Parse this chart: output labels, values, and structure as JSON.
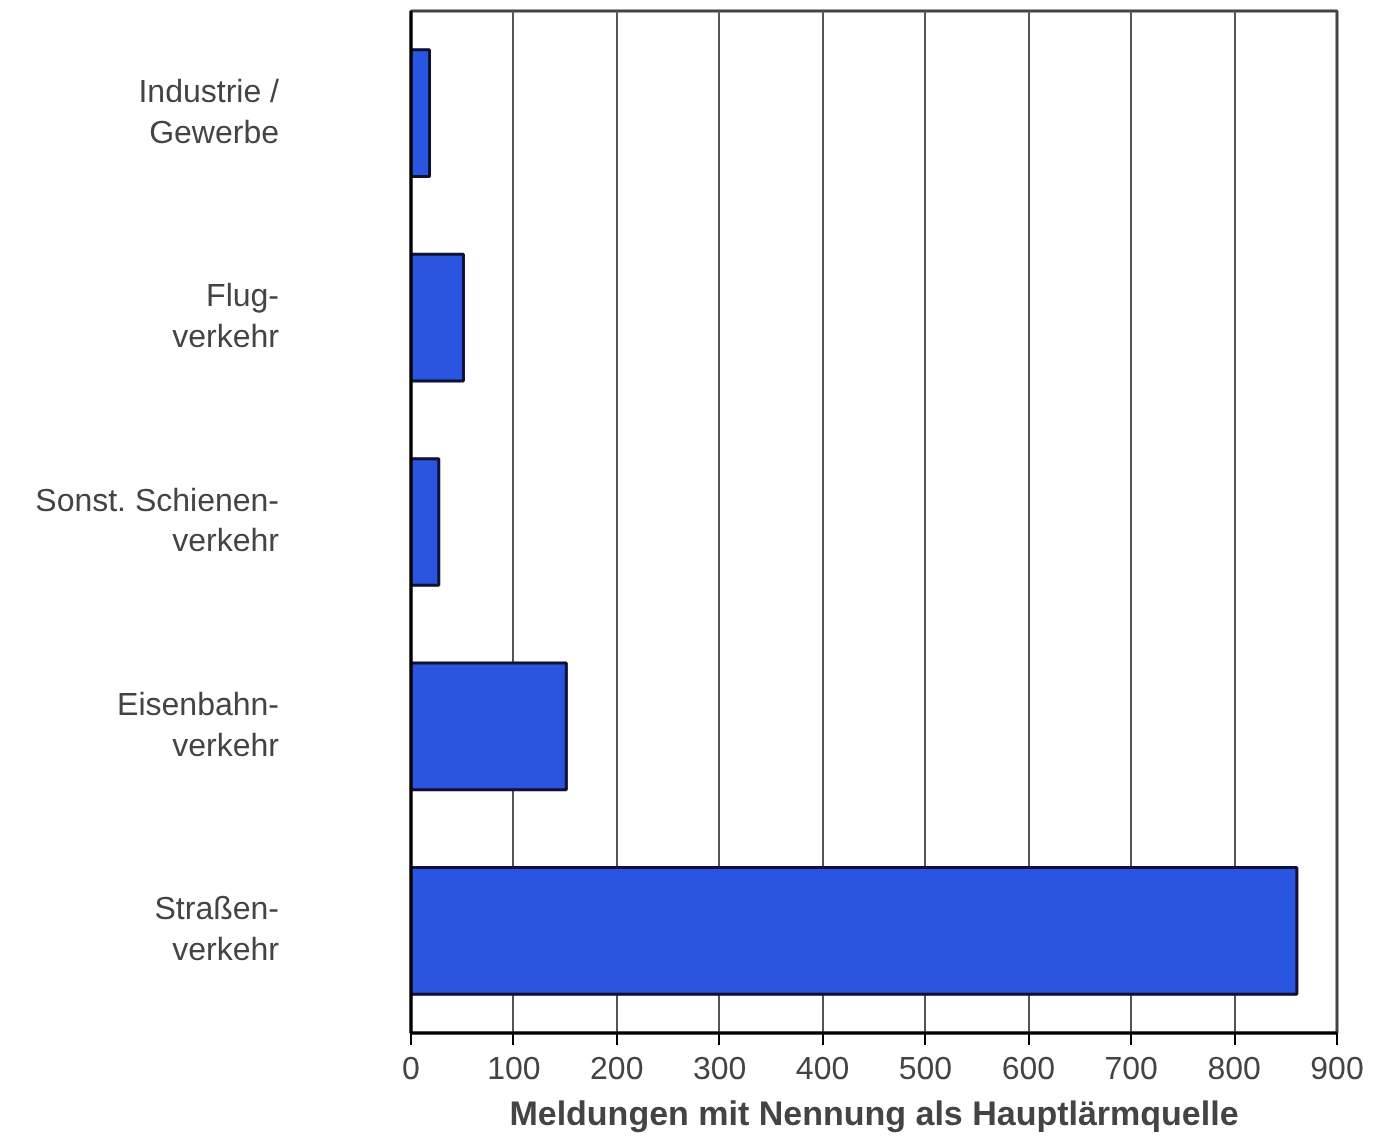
{
  "chart_data": {
    "type": "bar",
    "orientation": "horizontal",
    "xlabel": "Meldungen mit Nennung als Hauptlärmquelle",
    "categories": [
      "Industrie /\nGewerbe",
      "Flug-\nverkehr",
      "Sonst. Schienen-\nverkehr",
      "Eisenbahn-\nverkehr",
      "Straßen-\nverkehr"
    ],
    "values": [
      18,
      51,
      27,
      151,
      861
    ],
    "color": "#2a55e0",
    "xlim": [
      0,
      900
    ],
    "xticks": [
      0,
      100,
      200,
      300,
      400,
      500,
      600,
      700,
      800,
      900
    ],
    "grid": "x"
  }
}
